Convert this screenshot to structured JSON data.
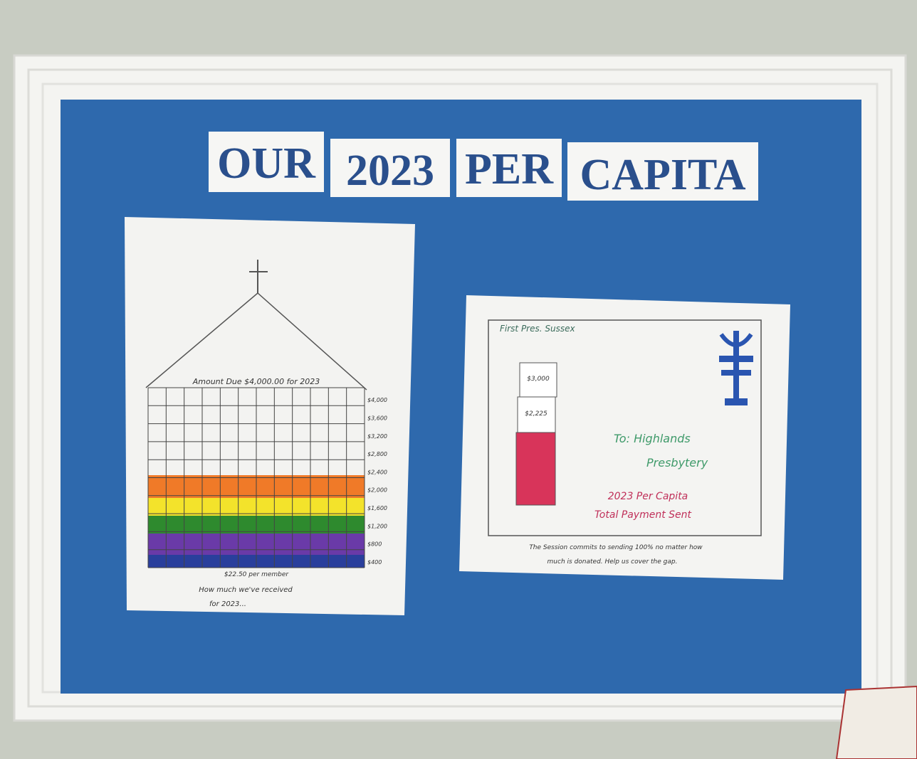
{
  "title": {
    "words": [
      "OUR",
      "2023",
      "PER",
      "CAPITA"
    ]
  },
  "left_poster": {
    "heading": "Amount Due $4,000.00 for 2023",
    "scale_labels": [
      "$4,000",
      "$3,600",
      "$3,200",
      "$2,800",
      "$2,400",
      "$2,000",
      "$1,600",
      "$1,200",
      "$800",
      "$400"
    ],
    "caption": [
      "$22.50 per member",
      "How much we've received",
      "for 2023..."
    ]
  },
  "right_poster": {
    "sender": "First Pres. Sussex",
    "bar_labels": [
      "$3,000",
      "$2,225"
    ],
    "recipient": [
      "To: Highlands",
      "Presbytery"
    ],
    "subject": [
      "2023 Per Capita",
      "Total Payment Sent"
    ],
    "footer": [
      "The Session commits to sending 100% no matter how",
      "much is donated. Help us cover the gap."
    ]
  }
}
